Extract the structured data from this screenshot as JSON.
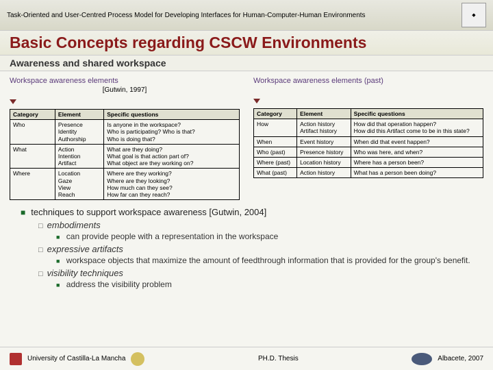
{
  "header": {
    "breadcrumb": "Task-Oriented and User-Centred Process Model for Developing Interfaces for Human-Computer-Human Environments"
  },
  "title": "Basic Concepts regarding CSCW Environments",
  "subtitle": "Awareness and shared workspace",
  "left_table": {
    "title": "Workspace awareness elements",
    "citation": "[Gutwin, 1997]",
    "columns": [
      "Category",
      "Element",
      "Specific questions"
    ],
    "rows": [
      [
        "Who",
        "Presence\nIdentity\nAuthorship",
        "Is anyone in the workspace?\nWho is participating? Who is that?\nWho is doing that?"
      ],
      [
        "What",
        "Action\nIntention\nArtifact",
        "What are they doing?\nWhat goal is that action part of?\nWhat object are they working on?"
      ],
      [
        "Where",
        "Location\nGaze\nView\nReach",
        "Where are they working?\nWhere are they looking?\nHow much can they see?\nHow far can they reach?"
      ]
    ]
  },
  "right_table": {
    "title": "Workspace awareness elements (past)",
    "columns": [
      "Category",
      "Element",
      "Specific questions"
    ],
    "rows": [
      [
        "How",
        "Action history\nArtifact history",
        "How did that operation happen?\nHow did this Artifact come to be in this state?"
      ],
      [
        "When",
        "Event history",
        "When did that event happen?"
      ],
      [
        "Who (past)",
        "Presence history",
        "Who was here, and when?"
      ],
      [
        "Where (past)",
        "Location history",
        "Where has a person been?"
      ],
      [
        "What (past)",
        "Action history",
        "What has a person been doing?"
      ]
    ]
  },
  "bullets": {
    "main": "techniques to support workspace awareness [Gutwin, 2004]",
    "items": [
      {
        "l2": "embodiments",
        "l3": "can provide people with a representation in the workspace"
      },
      {
        "l2": "expressive artifacts",
        "l3": "workspace objects that maximize the amount of feedthrough information that is provided for the group's benefit."
      },
      {
        "l2": "visibility techniques",
        "l3": "address the visibility problem"
      }
    ]
  },
  "footer": {
    "university": "University of Castilla-La Mancha",
    "center": "PH.D. Thesis",
    "right": "Albacete, 2007"
  }
}
